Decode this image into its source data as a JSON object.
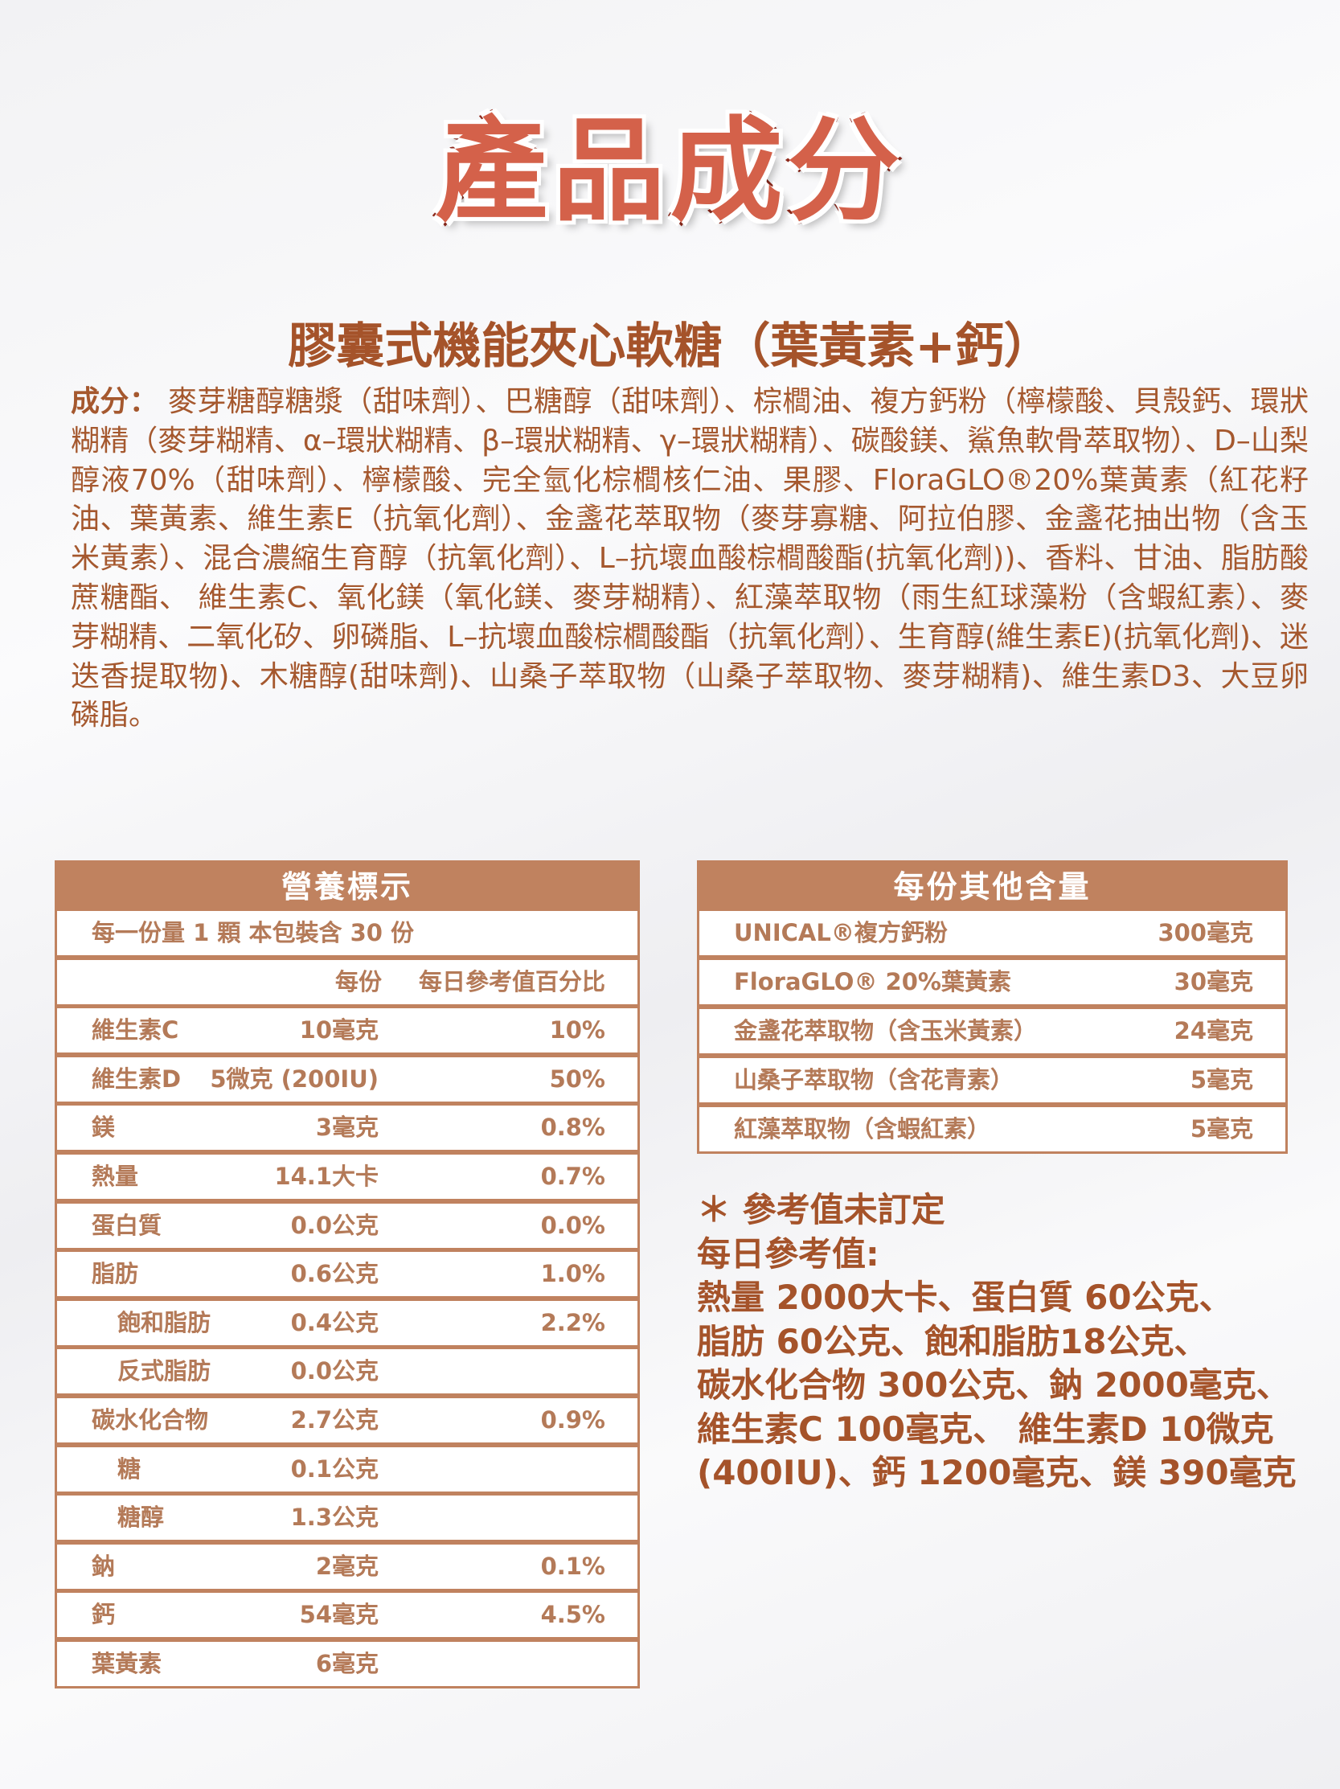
{
  "title": "產品成分",
  "subtitle": "膠囊式機能夾心軟糖（葉黃素+鈣）",
  "ingredients": {
    "label": "成分：",
    "text": "麥芽糖醇糖漿（甜味劑）、巴糖醇（甜味劑）、棕櫚油、複方鈣粉（檸檬酸、貝殼鈣、環狀糊精（麥芽糊精、α–環狀糊精、β–環狀糊精、γ–環狀糊精）、碳酸鎂、鯊魚軟骨萃取物）、D–山梨醇液70%（甜味劑）、檸檬酸、完全氫化棕櫚核仁油、果膠、FloraGLO®20%葉黃素（紅花籽油、葉黃素、維生素E（抗氧化劑）、金盞花萃取物（麥芽寡糖、阿拉伯膠、金盞花抽出物（含玉米黃素）、混合濃縮生育醇（抗氧化劑）、L–抗壞血酸棕櫚酸酯(抗氧化劑))、香料、甘油、脂肪酸蔗糖酯、 維生素C、氧化鎂（氧化鎂、麥芽糊精）、紅藻萃取物（雨生紅球藻粉（含蝦紅素）、麥芽糊精、二氧化矽、卵磷脂、L–抗壞血酸棕櫚酸酯（抗氧化劑）、生育醇(維生素E)(抗氧化劑)、迷迭香提取物)、木糖醇(甜味劑)、山桑子萃取物（山桑子萃取物、麥芽糊精)、維生素D3、大豆卵磷脂。"
  },
  "nutrition": {
    "title": "營養標示",
    "serving": "每一份量 1 顆  本包裝含 30 份",
    "col_per": "每份",
    "col_dv": "每日參考值百分比",
    "rows": [
      {
        "name": "維生素C",
        "amount": "10毫克",
        "dv": "10%",
        "indent": false
      },
      {
        "name": "維生素D",
        "amount": "5微克 (200IU)",
        "dv": "50%",
        "indent": false
      },
      {
        "name": "鎂",
        "amount": "3毫克",
        "dv": "0.8%",
        "indent": false
      },
      {
        "name": "熱量",
        "amount": "14.1大卡",
        "dv": "0.7%",
        "indent": false
      },
      {
        "name": "蛋白質",
        "amount": "0.0公克",
        "dv": "0.0%",
        "indent": false
      },
      {
        "name": "脂肪",
        "amount": "0.6公克",
        "dv": "1.0%",
        "indent": false
      },
      {
        "name": "飽和脂肪",
        "amount": "0.4公克",
        "dv": "2.2%",
        "indent": true
      },
      {
        "name": "反式脂肪",
        "amount": "0.0公克",
        "dv": "",
        "indent": true
      },
      {
        "name": "碳水化合物",
        "amount": "2.7公克",
        "dv": "0.9%",
        "indent": false
      },
      {
        "name": "糖",
        "amount": "0.1公克",
        "dv": "",
        "indent": true
      },
      {
        "name": "糖醇",
        "amount": "1.3公克",
        "dv": "",
        "indent": true
      },
      {
        "name": "鈉",
        "amount": "2毫克",
        "dv": "0.1%",
        "indent": false
      },
      {
        "name": "鈣",
        "amount": "54毫克",
        "dv": "4.5%",
        "indent": false
      },
      {
        "name": "葉黃素",
        "amount": "6毫克",
        "dv": "",
        "indent": false
      }
    ]
  },
  "other": {
    "title": "每份其他含量",
    "rows": [
      {
        "name": "UNICAL®複方鈣粉",
        "amount": "300毫克"
      },
      {
        "name": "FloraGLO® 20%葉黃素",
        "amount": "30毫克"
      },
      {
        "name": "金盞花萃取物（含玉米黃素）",
        "amount": "24毫克"
      },
      {
        "name": "山桑子萃取物（含花青素）",
        "amount": "5毫克"
      },
      {
        "name": "紅藻萃取物（含蝦紅素）",
        "amount": "5毫克"
      }
    ]
  },
  "notes": {
    "lines": [
      "＊ 參考值未訂定",
      "每日參考值:",
      "熱量 2000大卡、蛋白質 60公克、",
      "脂肪 60公克、飽和脂肪18公克、",
      "碳水化合物 300公克、鈉 2000毫克、",
      "維生素C 100毫克、 維生素D 10微克",
      "(400IU)、鈣 1200毫克、鎂 390毫克"
    ]
  },
  "colors": {
    "title": "#d4614a",
    "text": "#a5532a",
    "table": "#c0825f"
  }
}
